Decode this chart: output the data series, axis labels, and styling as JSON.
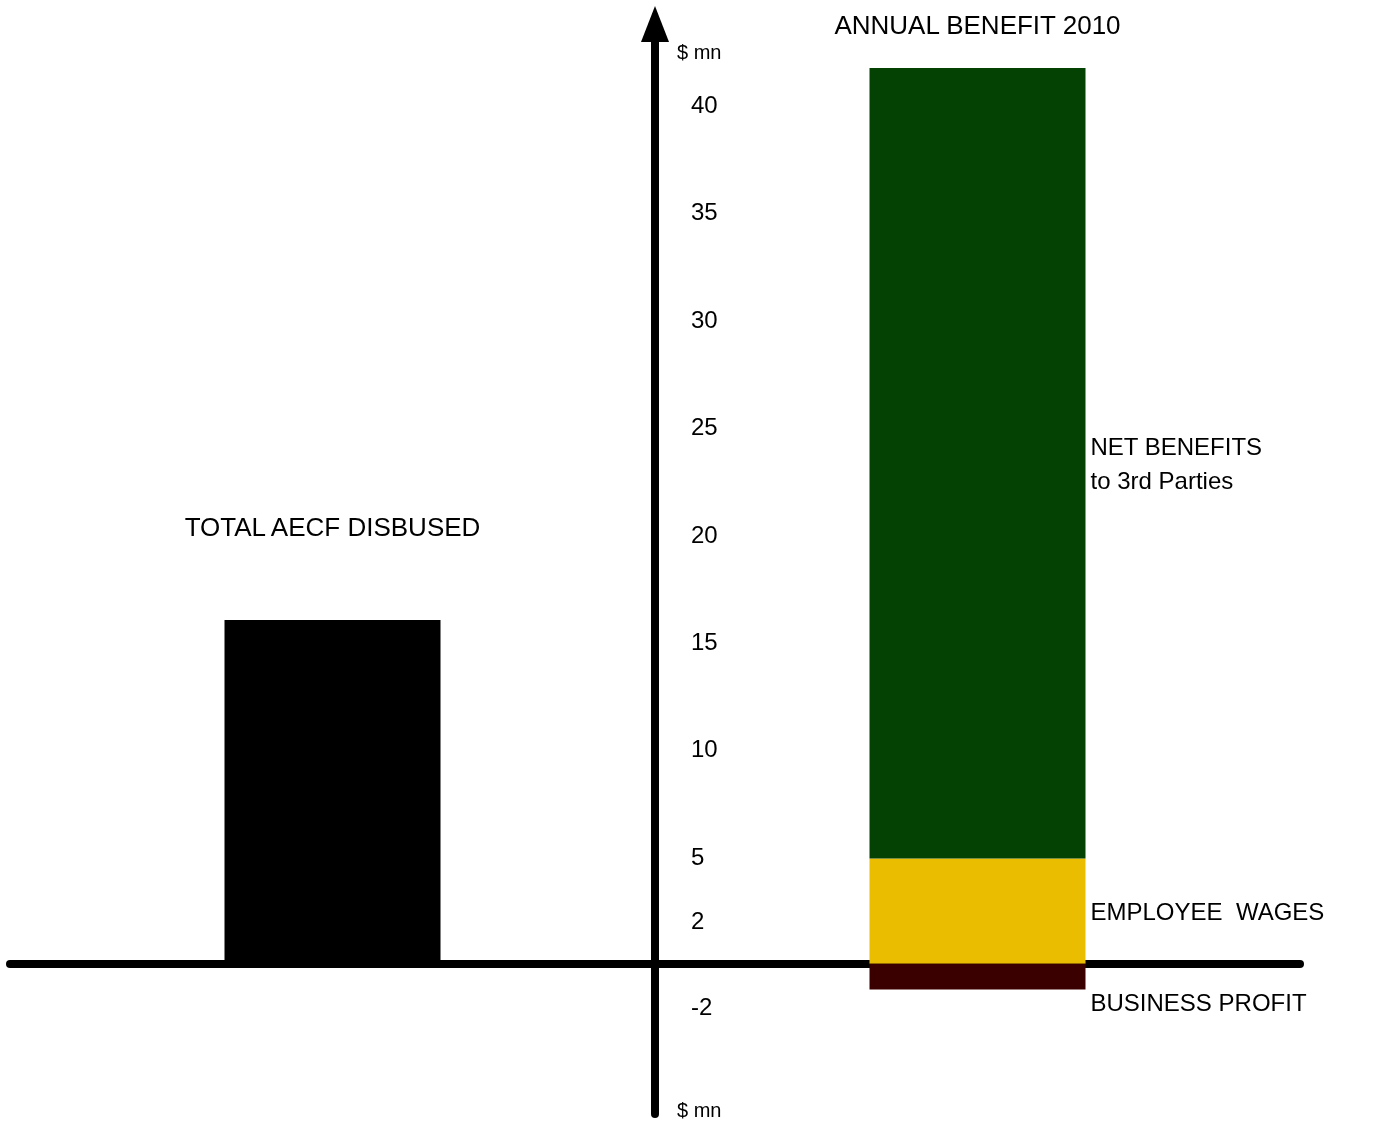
{
  "chart_data": {
    "type": "bar",
    "stacked": true,
    "ylabel": "$ mn",
    "categories": [
      "TOTAL AECF DISBUSED",
      "ANNUAL BENEFIT 2010"
    ],
    "series": [
      {
        "color": "#000000",
        "values": [
          16,
          null
        ]
      },
      {
        "name": "EMPLOYEE  WAGES",
        "color": "#ebbd00",
        "values": [
          null,
          4.9
        ]
      },
      {
        "name": "BUSINESS PROFIT",
        "color": "#3a0000",
        "values": [
          null,
          -1.2
        ]
      },
      {
        "name": "NET BENEFITS to 3rd Parties",
        "color": "#034203",
        "values": [
          null,
          36.8
        ]
      }
    ],
    "ylim": [
      -7,
      43
    ],
    "yticks": [
      -2,
      2,
      5,
      10,
      15,
      20,
      25,
      30,
      35,
      40
    ],
    "grid": false,
    "legend": false
  }
}
